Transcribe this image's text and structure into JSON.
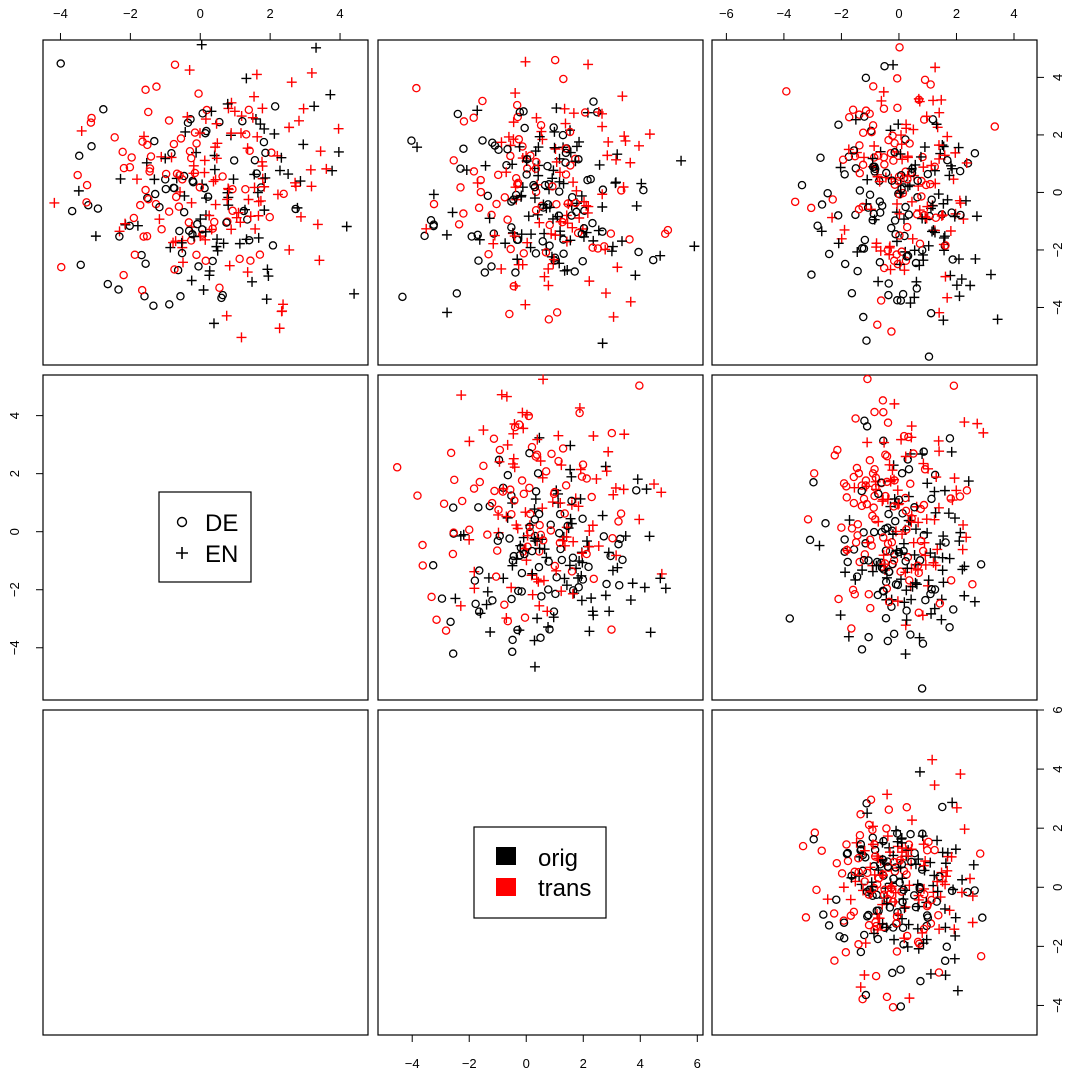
{
  "chart_data": {
    "type": "scatter",
    "description_kind": "pairs-plot",
    "grid": false,
    "legend_symbols": {
      "position": "middle-left panel",
      "entries": [
        {
          "label": "DE",
          "marker": "circle"
        },
        {
          "label": "EN",
          "marker": "plus"
        }
      ]
    },
    "legend_colors": {
      "position": "bottom-middle panel",
      "entries": [
        {
          "label": "orig",
          "color": "#000000"
        },
        {
          "label": "trans",
          "color": "#ff0000"
        }
      ]
    },
    "axes": {
      "top_left": {
        "ticks": [
          -4,
          -2,
          0,
          2,
          4
        ],
        "labels": [
          "−4",
          "−2",
          "0",
          "2",
          "4"
        ],
        "xlim": [
          -4.5,
          4.8
        ]
      },
      "top_right": {
        "ticks": [
          -6,
          -4,
          -2,
          0,
          2,
          4
        ],
        "labels": [
          "−6",
          "−4",
          "−2",
          "0",
          "2",
          "4"
        ],
        "xlim": [
          -6.5,
          4.8
        ]
      },
      "right_top": {
        "ticks": [
          -4,
          -2,
          0,
          2,
          4
        ],
        "labels": [
          "−4",
          "−2",
          "0",
          "2",
          "4"
        ],
        "ylim": [
          -6.0,
          5.3
        ]
      },
      "left_middle": {
        "ticks": [
          -4,
          -2,
          0,
          2,
          4
        ],
        "labels": [
          "−4",
          "−2",
          "0",
          "2",
          "4"
        ],
        "ylim": [
          -5.8,
          5.4
        ]
      },
      "right_bottom": {
        "ticks": [
          -4,
          -2,
          0,
          2,
          4,
          6
        ],
        "labels": [
          "−4",
          "−2",
          "0",
          "2",
          "4",
          "6"
        ],
        "ylim": [
          -5.0,
          6.0
        ]
      },
      "bottom_middle": {
        "ticks": [
          -4,
          -2,
          0,
          2,
          4,
          6
        ],
        "labels": [
          "−4",
          "−2",
          "0",
          "2",
          "4",
          "6"
        ],
        "xlim": [
          -5.2,
          6.2
        ]
      }
    },
    "panels": [
      {
        "row": 0,
        "col": 1,
        "xlim": [
          -5.2,
          6.2
        ],
        "ylim": [
          -6.0,
          5.3
        ],
        "n": 300,
        "center_x": 0.6,
        "center_y": 0.0,
        "sd_x": 1.7,
        "sd_y": 2.0,
        "seed": 11
      },
      {
        "row": 0,
        "col": 2,
        "xlim": [
          -6.5,
          4.8
        ],
        "ylim": [
          -6.0,
          5.3
        ],
        "n": 300,
        "center_x": 0.0,
        "center_y": 0.0,
        "sd_x": 1.2,
        "sd_y": 2.0,
        "seed": 23
      },
      {
        "row": 1,
        "col": 1,
        "xlim": [
          -5.2,
          6.2
        ],
        "ylim": [
          -5.8,
          5.4
        ],
        "n": 300,
        "center_x": 0.6,
        "center_y": 0.0,
        "sd_x": 1.7,
        "sd_y": 1.8,
        "seed": 37
      },
      {
        "row": 1,
        "col": 2,
        "xlim": [
          -6.5,
          4.8
        ],
        "ylim": [
          -5.8,
          5.4
        ],
        "n": 300,
        "center_x": 0.0,
        "center_y": 0.0,
        "sd_x": 1.2,
        "sd_y": 1.8,
        "seed": 41
      },
      {
        "row": 2,
        "col": 2,
        "xlim": [
          -6.5,
          4.8
        ],
        "ylim": [
          -5.0,
          6.0
        ],
        "n": 300,
        "center_x": 0.0,
        "center_y": 0.0,
        "sd_x": 1.3,
        "sd_y": 1.5,
        "seed": 53
      },
      {
        "row": 0,
        "col": 0,
        "xlim": [
          -4.5,
          4.8
        ],
        "ylim": [
          -6.0,
          5.3
        ],
        "n": 300,
        "center_x": 0.0,
        "center_y": 0.0,
        "sd_x": 1.5,
        "sd_y": 2.0,
        "seed": 67
      }
    ]
  }
}
